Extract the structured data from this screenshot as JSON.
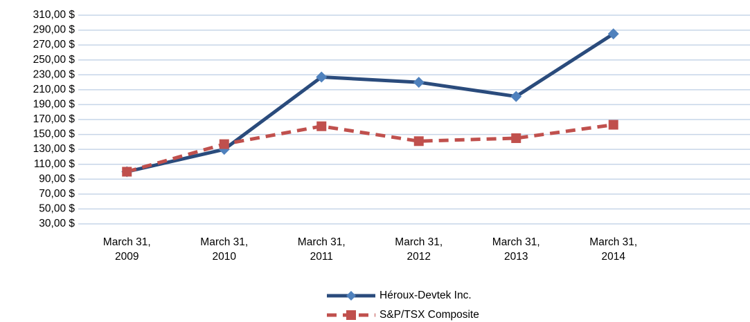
{
  "chart_data": {
    "type": "line",
    "categories": [
      "March 31, 2009",
      "March 31, 2010",
      "March 31, 2011",
      "March 31, 2012",
      "March 31, 2013",
      "March 31, 2014"
    ],
    "series": [
      {
        "name": "Héroux-Devtek Inc.",
        "color": "#2a4b7c",
        "marker_color": "#4f81bd",
        "marker": "diamond",
        "linestyle": "solid",
        "values": [
          100,
          130,
          227,
          220,
          201,
          285
        ]
      },
      {
        "name": "S&P/TSX Composite",
        "color": "#c0504d",
        "marker_color": "#c0504d",
        "marker": "square",
        "linestyle": "dashed",
        "values": [
          100,
          137,
          161,
          141,
          145,
          163
        ]
      }
    ],
    "ylim": [
      30,
      310
    ],
    "yticks": [
      {
        "value": 30,
        "label": "30,00 $"
      },
      {
        "value": 50,
        "label": "50,00 $"
      },
      {
        "value": 70,
        "label": "70,00 $"
      },
      {
        "value": 90,
        "label": "90,00 $"
      },
      {
        "value": 110,
        "label": "110,00 $"
      },
      {
        "value": 130,
        "label": "130,00 $"
      },
      {
        "value": 150,
        "label": "150,00 $"
      },
      {
        "value": 170,
        "label": "170,00 $"
      },
      {
        "value": 190,
        "label": "190,00 $"
      },
      {
        "value": 210,
        "label": "210,00 $"
      },
      {
        "value": 230,
        "label": "230,00 $"
      },
      {
        "value": 250,
        "label": "250,00 $"
      },
      {
        "value": 270,
        "label": "270,00 $"
      },
      {
        "value": 290,
        "label": "290,00 $"
      },
      {
        "value": 310,
        "label": "310,00 $"
      }
    ],
    "grid": true,
    "grid_color": "#c6d5e8",
    "legend": "bottom"
  }
}
